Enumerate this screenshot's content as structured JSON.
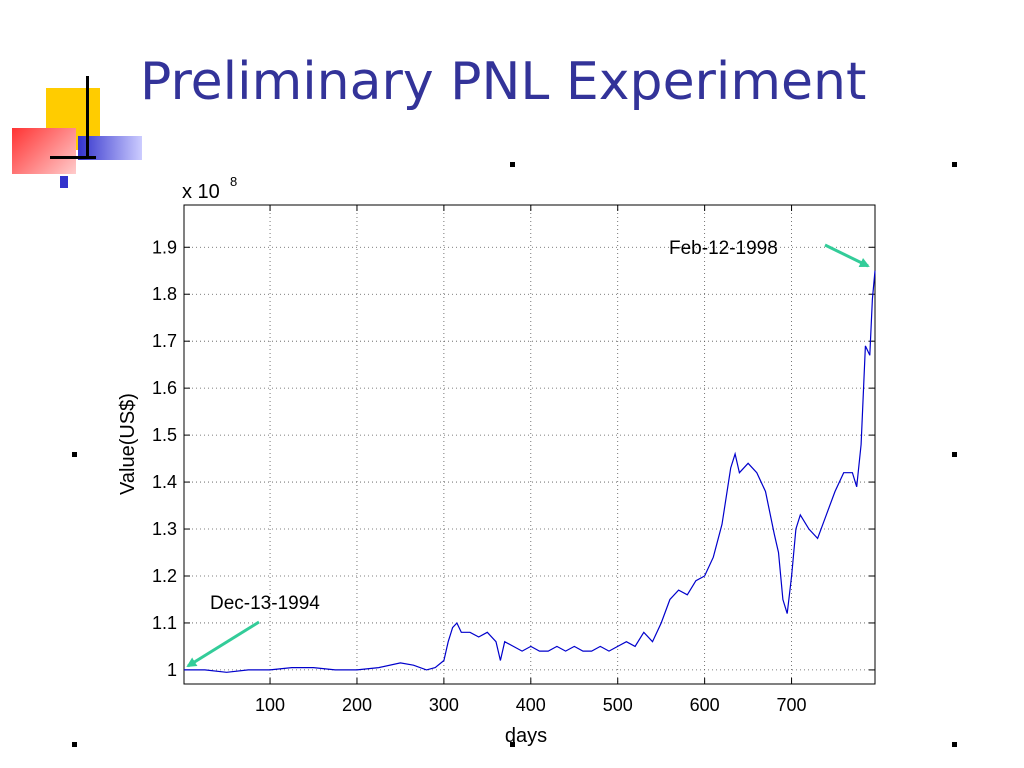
{
  "slide": {
    "title": "Preliminary PNL Experiment"
  },
  "colors": {
    "title": "#333399",
    "series": "#0000cc",
    "arrow": "#33cc99",
    "logo_yellow": "#ffcc00",
    "logo_red": "#ff3333",
    "logo_blue": "#3333cc"
  },
  "chart_data": {
    "type": "line",
    "title": "",
    "xlabel": "days",
    "ylabel": "Value(US$)",
    "y_multiplier_label": "x 10",
    "y_multiplier_exponent": "8",
    "xlim": [
      1,
      796
    ],
    "ylim": [
      0.97,
      1.99
    ],
    "x_ticks": [
      100,
      200,
      300,
      400,
      500,
      600,
      700
    ],
    "y_ticks": [
      1,
      1.1,
      1.2,
      1.3,
      1.4,
      1.5,
      1.6,
      1.7,
      1.8,
      1.9
    ],
    "y_tick_labels": [
      "1",
      "1.1",
      "1.2",
      "1.3",
      "1.4",
      "1.5",
      "1.6",
      "1.7",
      "1.8",
      "1.9"
    ],
    "grid": true,
    "series": [
      {
        "name": "",
        "x": [
          1,
          25,
          50,
          75,
          100,
          125,
          150,
          175,
          200,
          225,
          250,
          265,
          280,
          290,
          300,
          305,
          310,
          315,
          320,
          330,
          340,
          350,
          360,
          365,
          370,
          380,
          390,
          400,
          410,
          420,
          430,
          440,
          450,
          460,
          470,
          480,
          490,
          500,
          510,
          520,
          530,
          540,
          550,
          560,
          570,
          580,
          590,
          600,
          610,
          620,
          630,
          635,
          640,
          650,
          660,
          670,
          680,
          685,
          690,
          695,
          700,
          705,
          710,
          720,
          730,
          740,
          750,
          760,
          770,
          775,
          780,
          785,
          790,
          793,
          796
        ],
        "y": [
          1.0,
          1.0,
          0.995,
          1.0,
          1.0,
          1.005,
          1.005,
          1.0,
          1.0,
          1.005,
          1.015,
          1.01,
          1.0,
          1.005,
          1.02,
          1.06,
          1.09,
          1.1,
          1.08,
          1.08,
          1.07,
          1.08,
          1.06,
          1.02,
          1.06,
          1.05,
          1.04,
          1.05,
          1.04,
          1.04,
          1.05,
          1.04,
          1.05,
          1.04,
          1.04,
          1.05,
          1.04,
          1.05,
          1.06,
          1.05,
          1.08,
          1.06,
          1.1,
          1.15,
          1.17,
          1.16,
          1.19,
          1.2,
          1.24,
          1.31,
          1.43,
          1.46,
          1.42,
          1.44,
          1.42,
          1.38,
          1.29,
          1.25,
          1.15,
          1.12,
          1.2,
          1.3,
          1.33,
          1.3,
          1.28,
          1.33,
          1.38,
          1.42,
          1.42,
          1.39,
          1.48,
          1.69,
          1.67,
          1.79,
          1.85
        ]
      }
    ],
    "annotations": [
      {
        "text": "Feb-12-1998",
        "x": 796,
        "y": 1.85
      },
      {
        "text": "Dec-13-1994",
        "x": 1,
        "y": 1.0
      }
    ]
  }
}
